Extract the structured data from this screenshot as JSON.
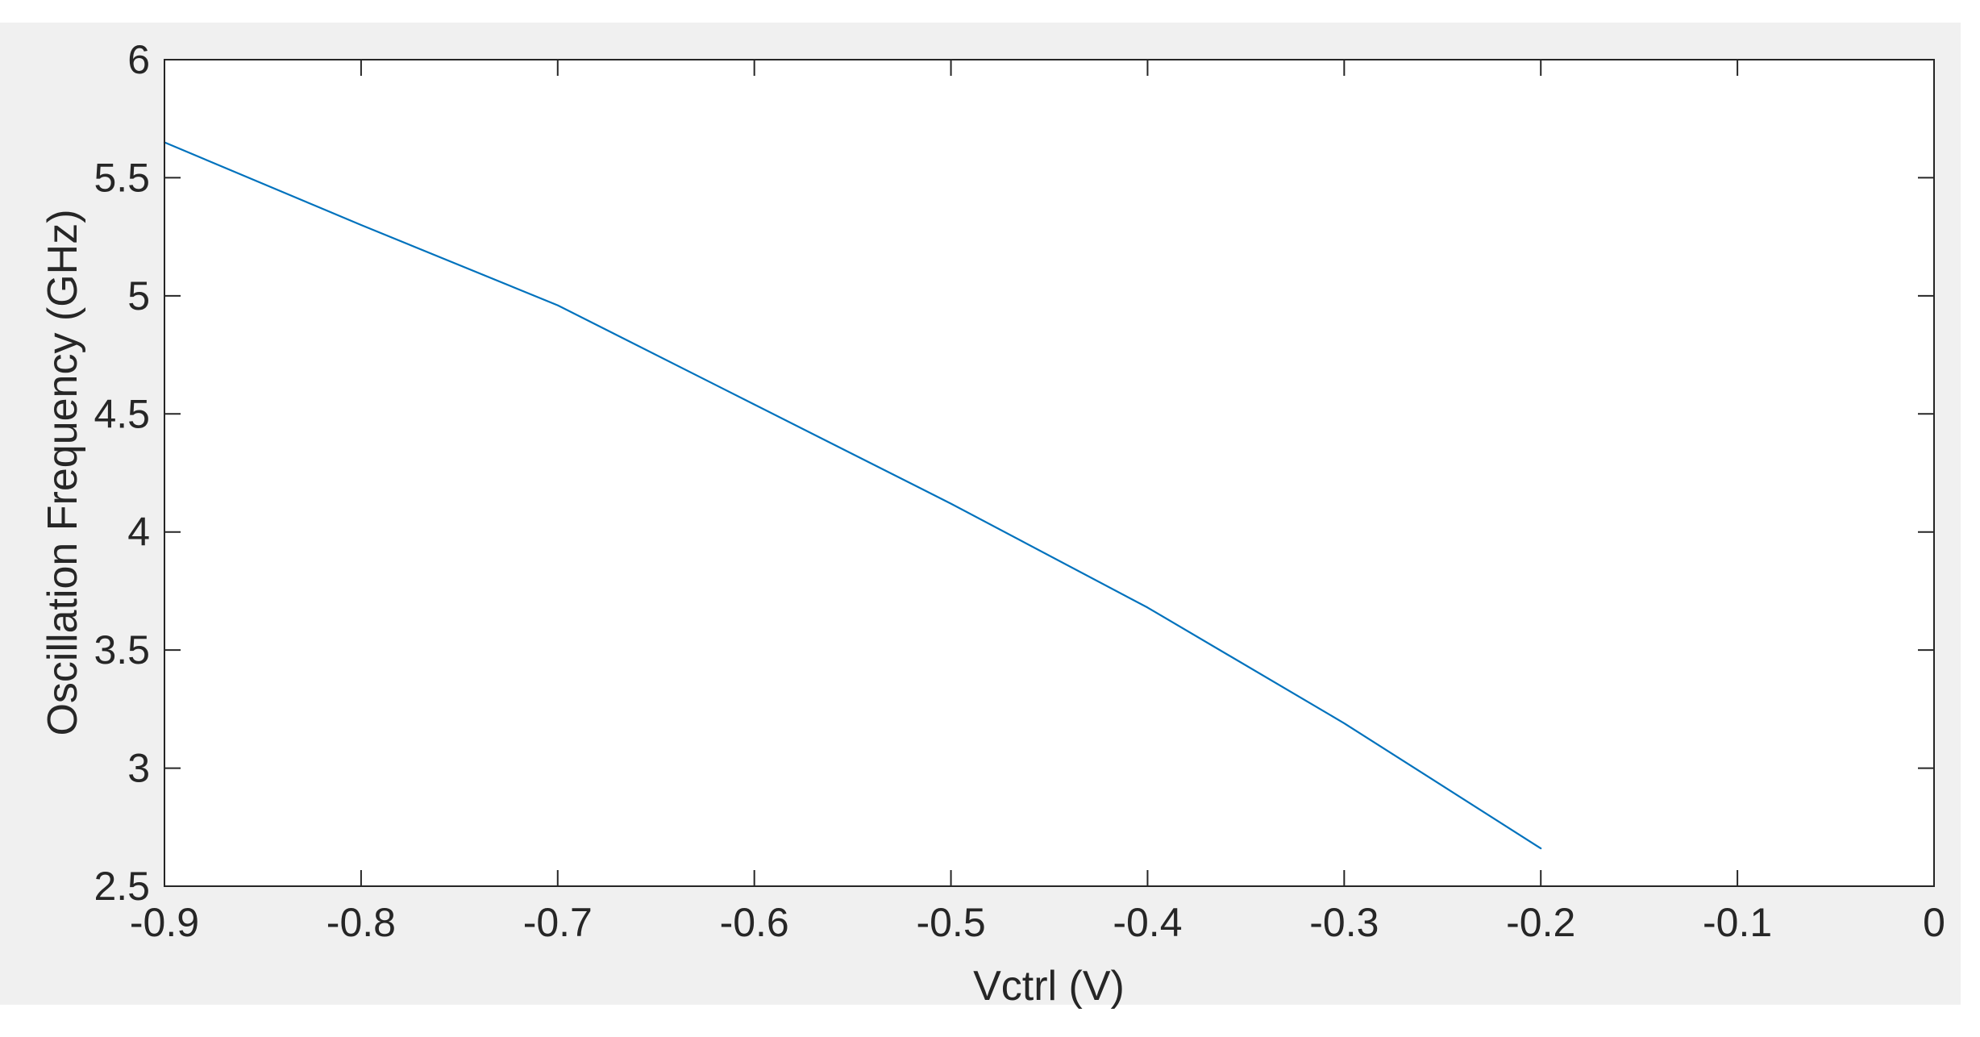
{
  "chart_data": {
    "type": "line",
    "title": "",
    "xlabel": "Vctrl (V)",
    "ylabel": "Oscillation Frequency (GHz)",
    "xlim": [
      -0.9,
      0
    ],
    "ylim": [
      2.5,
      6
    ],
    "x_ticks": [
      -0.9,
      -0.8,
      -0.7,
      -0.6,
      -0.5,
      -0.4,
      -0.3,
      -0.2,
      -0.1,
      0
    ],
    "x_tick_labels": [
      "-0.9",
      "-0.8",
      "-0.7",
      "-0.6",
      "-0.5",
      "-0.4",
      "-0.3",
      "-0.2",
      "-0.1",
      "0"
    ],
    "y_ticks": [
      2.5,
      3,
      3.5,
      4,
      4.5,
      5,
      5.5,
      6
    ],
    "y_tick_labels": [
      "2.5",
      "3",
      "3.5",
      "4",
      "4.5",
      "5",
      "5.5",
      "6"
    ],
    "grid": false,
    "legend": "none",
    "series": [
      {
        "color": "#0072BD",
        "x": [
          -0.9,
          -0.8,
          -0.7,
          -0.6,
          -0.5,
          -0.4,
          -0.3,
          -0.2
        ],
        "y": [
          5.65,
          5.3,
          4.96,
          4.54,
          4.12,
          3.68,
          3.19,
          2.66
        ]
      }
    ]
  },
  "colors": {
    "figure_background": "#f0f0f0",
    "axes_background": "#ffffff",
    "axis_color": "#262626",
    "line_color": "#0072BD"
  }
}
